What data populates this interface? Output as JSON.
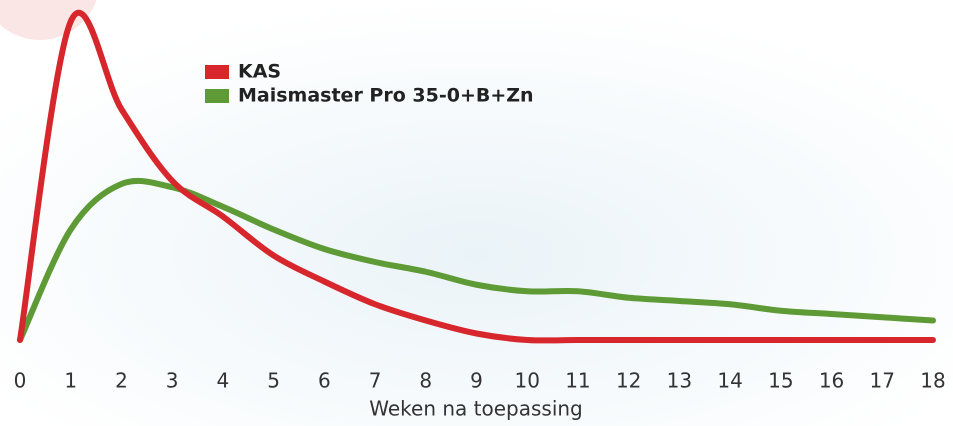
{
  "chart_data": {
    "type": "line",
    "x": [
      0,
      1,
      2,
      3,
      4,
      5,
      6,
      7,
      8,
      9,
      10,
      11,
      12,
      13,
      14,
      15,
      16,
      17,
      18
    ],
    "series": [
      {
        "name": "KAS",
        "color": "#d7262c",
        "values": [
          0,
          98,
          71,
          49,
          38,
          26,
          18,
          11,
          6,
          2,
          0,
          0,
          0,
          0,
          0,
          0,
          0,
          0,
          0
        ]
      },
      {
        "name": "Maismaster Pro 35-0+B+Zn",
        "color": "#5e9a35",
        "values": [
          0,
          34,
          48,
          47,
          41,
          34,
          28,
          24,
          21,
          17,
          15,
          15,
          13,
          12,
          11,
          9,
          8,
          7,
          6
        ]
      }
    ],
    "xlim": [
      0,
      18
    ],
    "xticks": [
      0,
      1,
      2,
      3,
      4,
      5,
      6,
      7,
      8,
      9,
      10,
      11,
      12,
      13,
      14,
      15,
      16,
      17,
      18
    ],
    "ylim": [
      0,
      100
    ],
    "x_label": "Weken na toepassing"
  }
}
